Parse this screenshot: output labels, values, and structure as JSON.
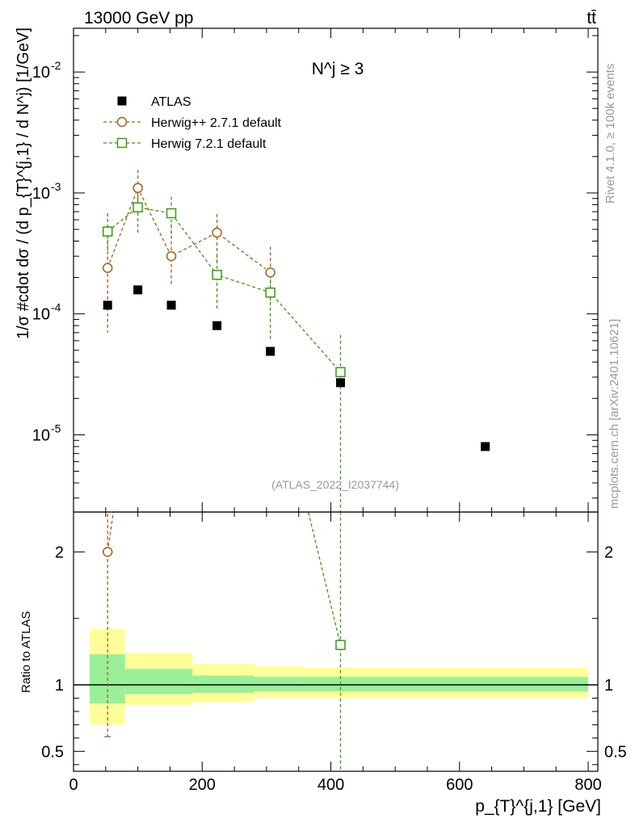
{
  "header": {
    "left": "13000 GeV pp",
    "right": "tt̄"
  },
  "side_labels": {
    "rivet": "Rivet 4.1.0, ≥ 100k events",
    "mcplots": "mcplots.cern.ch [arXiv:2401.10621]"
  },
  "colors": {
    "atlas": "#000000",
    "herwigpp": "#a0601a",
    "herwig7": "#3a9a10",
    "band_outer": "#ffff99",
    "band_inner": "#99f099",
    "watermark": "#999999"
  },
  "chart_data": [
    {
      "panel": "main",
      "type": "scatter",
      "title": "N^j ≥ 3",
      "annotation": "(ATLAS_2022_I2037744)",
      "ylabel": "1/σ #cdot dσ / (d p_{T}^{j,1} / d N^j) [1/GeV]",
      "yscale": "log",
      "ylim": [
        2.3e-06,
        0.023
      ],
      "xlim": [
        0,
        815
      ],
      "y_tick_labels": [
        "10^-5",
        "10^-4",
        "10^-3",
        "10^-2"
      ],
      "legend": [
        "ATLAS",
        "Herwig++ 2.7.1 default",
        "Herwig 7.2.1 default"
      ],
      "series": [
        {
          "name": "ATLAS",
          "style": "filled-square",
          "x": [
            53,
            100,
            152,
            223,
            306,
            415,
            640
          ],
          "y": [
            0.000118,
            0.000158,
            0.000118,
            8e-05,
            4.9e-05,
            2.7e-05,
            8e-06
          ]
        },
        {
          "name": "Herwig++ 2.7.1 default",
          "style": "open-circle",
          "x": [
            53,
            100,
            152,
            223,
            306
          ],
          "y": [
            0.00024,
            0.0011,
            0.0003,
            0.00047,
            0.00022
          ],
          "yerr_low": [
            0.00017,
            0.0004,
            0.00013,
            0.0002,
            0.0001
          ],
          "yerr_high": [
            0.00017,
            0.00045,
            0.00025,
            0.0002,
            0.00014
          ]
        },
        {
          "name": "Herwig 7.2.1 default",
          "style": "open-square",
          "x": [
            53,
            100,
            152,
            223,
            306,
            415
          ],
          "y": [
            0.00048,
            0.00076,
            0.00068,
            0.00021,
            0.00015,
            3.3e-05
          ],
          "yerr_low": [
            0.00015,
            0.0003,
            0.00025,
            0.0001,
            9e-05,
            3.3e-05
          ],
          "yerr_high": [
            0.0002,
            0.0003,
            0.00025,
            0.0001,
            9e-05,
            3.4e-05
          ]
        }
      ]
    },
    {
      "panel": "ratio",
      "type": "line",
      "ylabel": "Ratio to ATLAS",
      "xlabel": "p_{T}^{j,1} [GeV]",
      "ylim": [
        0.35,
        2.3
      ],
      "xlim": [
        0,
        815
      ],
      "x_tick_labels": [
        "0",
        "200",
        "400",
        "600",
        "800"
      ],
      "y_tick_labels": [
        "0.5",
        "1",
        "2"
      ],
      "bands": {
        "edges": [
          25,
          80,
          185,
          280,
          355,
          800
        ],
        "outer_low": [
          0.7,
          0.85,
          0.87,
          0.9,
          0.9
        ],
        "outer_high": [
          1.42,
          1.24,
          1.16,
          1.14,
          1.13
        ],
        "inner_low": [
          0.86,
          0.93,
          0.94,
          0.95,
          0.95
        ],
        "inner_high": [
          1.23,
          1.12,
          1.07,
          1.06,
          1.06
        ]
      },
      "series": [
        {
          "name": "Herwig++ 2.7.1 default",
          "x": [
            53,
            68
          ],
          "y": [
            2.0,
            2.5
          ],
          "yerr_low": [
            1.39,
            0
          ],
          "yerr_high": [
            0.5,
            0
          ]
        },
        {
          "name": "Herwig 7.2.1 default",
          "x": [
            330,
            415
          ],
          "y": [
            3.0,
            1.3
          ],
          "yerr_low": [
            0,
            1.3
          ],
          "yerr_high": [
            0,
            1.3
          ]
        }
      ]
    }
  ]
}
